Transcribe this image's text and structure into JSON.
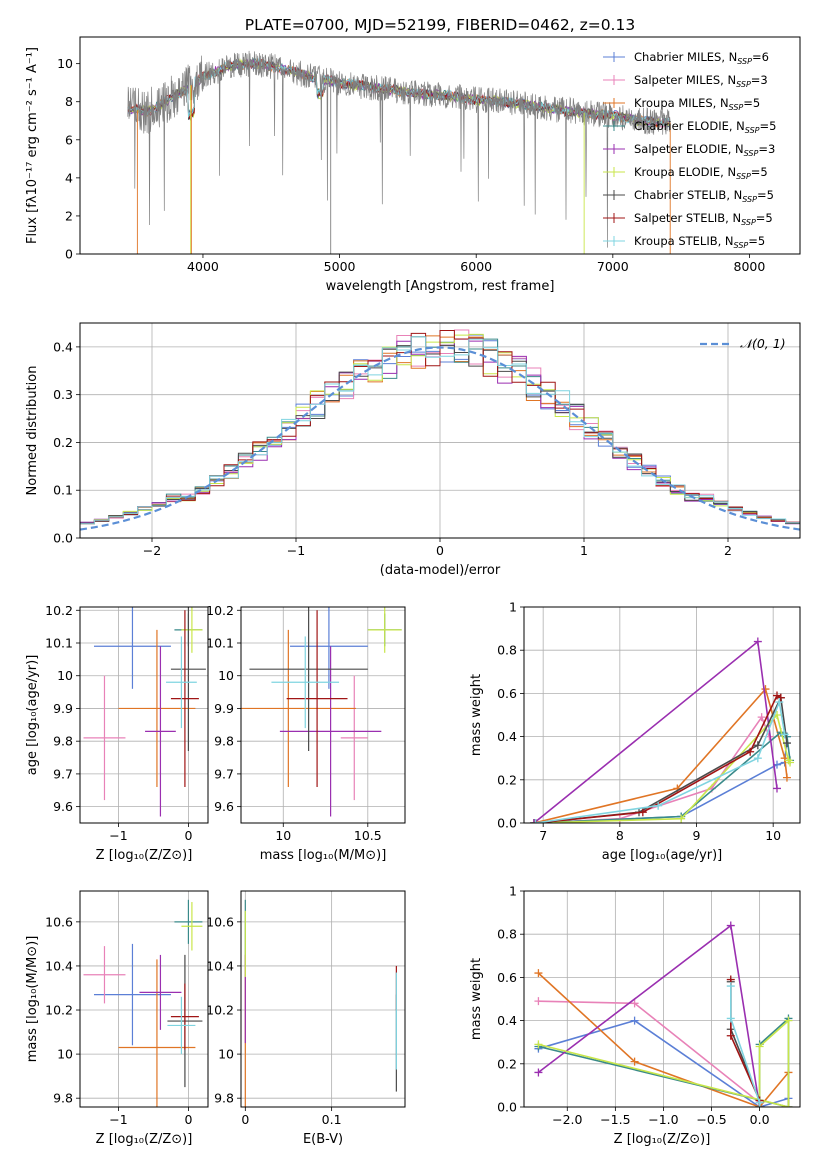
{
  "title": "PLATE=0700, MJD=52199, FIBERID=0462, z=0.13",
  "colors": {
    "c1": "#5b7fd6",
    "c2": "#e882b8",
    "c3": "#e07525",
    "c4": "#3a8a8a",
    "c5": "#9a2fb0",
    "c6": "#c8e64a",
    "c7": "#4a4a4a",
    "c8": "#a01515",
    "c9": "#7fd4e0",
    "grey": "#808080",
    "normal": "#5b8fd6"
  },
  "legend": [
    {
      "text": "Chabrier MILES, N",
      "sub": "SSP",
      "n": "=6",
      "color": "c1"
    },
    {
      "text": "Salpeter MILES, N",
      "sub": "SSP",
      "n": "=3",
      "color": "c2"
    },
    {
      "text": "Kroupa MILES, N",
      "sub": "SSP",
      "n": "=5",
      "color": "c3"
    },
    {
      "text": "Chabrier ELODIE, N",
      "sub": "SSP",
      "n": "=5",
      "color": "c4"
    },
    {
      "text": "Salpeter ELODIE, N",
      "sub": "SSP",
      "n": "=3",
      "color": "c5"
    },
    {
      "text": "Kroupa ELODIE, N",
      "sub": "SSP",
      "n": "=5",
      "color": "c6"
    },
    {
      "text": "Chabrier STELIB, N",
      "sub": "SSP",
      "n": "=5",
      "color": "c7"
    },
    {
      "text": "Salpeter STELIB, N",
      "sub": "SSP",
      "n": "=5",
      "color": "c8"
    },
    {
      "text": "Kroupa STELIB, N",
      "sub": "SSP",
      "n": "=5",
      "color": "c9"
    }
  ],
  "chart_data": [
    {
      "panel": "spectrum",
      "type": "line",
      "xlabel": "wavelength [Angstrom, rest frame]",
      "ylabel": "Flux [fλ10⁻¹⁷ erg cm⁻² s⁻¹ A⁻¹]",
      "xlim": [
        3100,
        8370
      ],
      "ylim": [
        0,
        11.4
      ],
      "xticks": [
        4000,
        5000,
        6000,
        7000,
        8000
      ],
      "yticks": [
        0,
        2,
        4,
        6,
        8,
        10
      ],
      "continuum_x": [
        3450,
        3600,
        3800,
        4000,
        4200,
        4400,
        4600,
        4800,
        5000,
        5200,
        5400,
        5600,
        5800,
        6000,
        6200,
        6400,
        6600,
        6800,
        7000,
        7200,
        7400
      ],
      "continuum_y": [
        7.6,
        7.5,
        8.3,
        9.3,
        9.9,
        10.0,
        9.7,
        9.3,
        9.0,
        8.8,
        8.6,
        8.4,
        8.3,
        8.1,
        8.0,
        7.8,
        7.6,
        7.4,
        7.3,
        7.0,
        6.9
      ]
    },
    {
      "panel": "residual_distribution",
      "type": "line",
      "xlabel": "(data-model)/error",
      "ylabel": "Normed distribution",
      "xlim": [
        -2.5,
        2.5
      ],
      "ylim": [
        0,
        0.45
      ],
      "xticks": [
        -2,
        -1,
        0,
        1,
        2
      ],
      "yticks": [
        0.0,
        0.1,
        0.2,
        0.3,
        0.4
      ],
      "normal_label": "𝒩(0, 1)",
      "bin_width": 0.1
    },
    {
      "panel": "age_vs_Z",
      "type": "scatter",
      "xlabel": "Z [log₁₀(Z/Z⊙)]",
      "ylabel": "age  [log₁₀(age/yr)]",
      "xlim": [
        -1.55,
        0.28
      ],
      "ylim": [
        9.55,
        10.21
      ],
      "xticks": [
        -1,
        0
      ],
      "yticks": [
        9.6,
        9.7,
        9.8,
        9.9,
        10.0,
        10.1,
        10.2
      ],
      "points": [
        {
          "c": "c1",
          "x": -0.8,
          "xe": 0.55,
          "y": 10.09,
          "ye": 0.13
        },
        {
          "c": "c2",
          "x": -1.2,
          "xe": 0.3,
          "y": 9.81,
          "ye": 0.19
        },
        {
          "c": "c3",
          "x": -0.45,
          "xe": 0.55,
          "y": 9.9,
          "ye": 0.24
        },
        {
          "c": "c4",
          "x": 0.0,
          "xe": 0.2,
          "y": 10.14,
          "ye": 0.05
        },
        {
          "c": "c5",
          "x": -0.4,
          "xe": 0.22,
          "y": 9.83,
          "ye": 0.26
        },
        {
          "c": "c6",
          "x": 0.05,
          "xe": 0.15,
          "y": 10.14,
          "ye": 0.07
        },
        {
          "c": "c7",
          "x": 0.0,
          "xe": 0.25,
          "y": 10.02,
          "ye": 0.25
        },
        {
          "c": "c8",
          "x": -0.05,
          "xe": 0.2,
          "y": 9.93,
          "ye": 0.27
        },
        {
          "c": "c9",
          "x": -0.1,
          "xe": 0.22,
          "y": 9.98,
          "ye": 0.14
        }
      ]
    },
    {
      "panel": "age_vs_mass",
      "type": "scatter",
      "xlabel": "mass [log₁₀(M/M⊙)]",
      "ylabel": "",
      "xlim": [
        9.75,
        10.72
      ],
      "ylim": [
        9.55,
        10.21
      ],
      "xticks": [
        10.0,
        10.5
      ],
      "yticks": [
        9.6,
        9.7,
        9.8,
        9.9,
        10.0,
        10.1,
        10.2
      ],
      "points": [
        {
          "c": "c1",
          "x": 10.27,
          "xe": 0.23,
          "y": 10.09,
          "ye": 0.13
        },
        {
          "c": "c2",
          "x": 10.42,
          "xe": 0.08,
          "y": 9.81,
          "ye": 0.19
        },
        {
          "c": "c3",
          "x": 10.03,
          "xe": 0.4,
          "y": 9.9,
          "ye": 0.24
        },
        {
          "c": "c4",
          "x": 10.6,
          "xe": 0.1,
          "y": 10.14,
          "ye": 0.05
        },
        {
          "c": "c5",
          "x": 10.28,
          "xe": 0.3,
          "y": 9.83,
          "ye": 0.26
        },
        {
          "c": "c6",
          "x": 10.6,
          "xe": 0.1,
          "y": 10.14,
          "ye": 0.07
        },
        {
          "c": "c7",
          "x": 10.15,
          "xe": 0.35,
          "y": 10.02,
          "ye": 0.25
        },
        {
          "c": "c8",
          "x": 10.2,
          "xe": 0.18,
          "y": 9.93,
          "ye": 0.27
        },
        {
          "c": "c9",
          "x": 10.13,
          "xe": 0.2,
          "y": 9.98,
          "ye": 0.14
        }
      ]
    },
    {
      "panel": "weight_vs_age",
      "type": "line",
      "xlabel": "age  [log₁₀(age/yr)]",
      "ylabel": "mass weight",
      "xlim": [
        6.75,
        10.35
      ],
      "ylim": [
        0,
        1
      ],
      "xticks": [
        7,
        8,
        9,
        10
      ],
      "yticks": [
        0.0,
        0.2,
        0.4,
        0.6,
        0.8,
        1.0
      ],
      "series": [
        {
          "c": "c1",
          "x": [
            6.88,
            8.8,
            10.05,
            10.15,
            10.18
          ],
          "y": [
            0.0,
            0.03,
            0.27,
            0.28,
            0.4
          ]
        },
        {
          "c": "c2",
          "x": [
            6.9,
            8.0,
            9.2,
            9.85,
            9.95
          ],
          "y": [
            0.0,
            0.02,
            0.16,
            0.49,
            0.4
          ]
        },
        {
          "c": "c3",
          "x": [
            6.88,
            8.75,
            9.9,
            10.15,
            10.18
          ],
          "y": [
            0.0,
            0.16,
            0.62,
            0.3,
            0.21
          ]
        },
        {
          "c": "c4",
          "x": [
            6.88,
            8.8,
            10.1,
            10.18,
            10.22
          ],
          "y": [
            0.0,
            0.03,
            0.42,
            0.4,
            0.29
          ]
        },
        {
          "c": "c5",
          "x": [
            6.88,
            9.8,
            10.05
          ],
          "y": [
            0.0,
            0.84,
            0.16
          ]
        },
        {
          "c": "c6",
          "x": [
            6.9,
            8.8,
            10.05,
            10.2,
            10.22
          ],
          "y": [
            0.0,
            0.02,
            0.5,
            0.29,
            0.28
          ]
        },
        {
          "c": "c7",
          "x": [
            6.9,
            8.25,
            9.8,
            10.1,
            10.18
          ],
          "y": [
            0.0,
            0.05,
            0.36,
            0.58,
            0.37
          ]
        },
        {
          "c": "c8",
          "x": [
            6.9,
            8.3,
            9.7,
            10.05,
            10.1
          ],
          "y": [
            0.0,
            0.05,
            0.33,
            0.59,
            0.58
          ]
        },
        {
          "c": "c9",
          "x": [
            6.9,
            8.5,
            9.8,
            10.08,
            10.15
          ],
          "y": [
            0.0,
            0.08,
            0.3,
            0.56,
            0.41
          ]
        }
      ]
    },
    {
      "panel": "mass_vs_Z",
      "type": "scatter",
      "xlabel": "Z [log₁₀(Z/Z⊙)]",
      "ylabel": "mass [log₁₀(M/M⊙)]",
      "xlim": [
        -1.55,
        0.28
      ],
      "ylim": [
        9.76,
        10.74
      ],
      "xticks": [
        -1,
        0
      ],
      "yticks": [
        9.8,
        10.0,
        10.2,
        10.4,
        10.6
      ],
      "points": [
        {
          "c": "c1",
          "x": -0.8,
          "xe": 0.55,
          "y": 10.27,
          "ye": 0.23
        },
        {
          "c": "c2",
          "x": -1.2,
          "xe": 0.3,
          "y": 10.36,
          "ye": 0.13
        },
        {
          "c": "c3",
          "x": -0.45,
          "xe": 0.55,
          "y": 10.03,
          "ye": 0.4
        },
        {
          "c": "c4",
          "x": 0.0,
          "xe": 0.2,
          "y": 10.6,
          "ye": 0.1
        },
        {
          "c": "c5",
          "x": -0.4,
          "xe": 0.3,
          "y": 10.28,
          "ye": 0.17
        },
        {
          "c": "c6",
          "x": 0.05,
          "xe": 0.15,
          "y": 10.58,
          "ye": 0.11
        },
        {
          "c": "c7",
          "x": -0.05,
          "xe": 0.25,
          "y": 10.15,
          "ye": 0.3
        },
        {
          "c": "c8",
          "x": -0.05,
          "xe": 0.2,
          "y": 10.17,
          "ye": 0.15
        },
        {
          "c": "c9",
          "x": -0.1,
          "xe": 0.2,
          "y": 10.13,
          "ye": 0.13
        }
      ]
    },
    {
      "panel": "mass_vs_EBV",
      "type": "scatter",
      "xlabel": "E(B-V)",
      "ylabel": "",
      "xlim": [
        -0.005,
        0.185
      ],
      "ylim": [
        9.76,
        10.74
      ],
      "xticks": [
        0.0,
        0.1
      ],
      "yticks": [
        9.8,
        10.0,
        10.2,
        10.4,
        10.6
      ],
      "points": [
        {
          "c": "c3",
          "x": 0.0,
          "xe": 0.0,
          "y": 10.1,
          "ye": 0.35
        },
        {
          "c": "c4",
          "x": 0.0,
          "xe": 0.0,
          "y": 10.55,
          "ye": 0.15
        },
        {
          "c": "c5",
          "x": 0.0,
          "xe": 0.0,
          "y": 10.25,
          "ye": 0.2
        },
        {
          "c": "c6",
          "x": 0.0,
          "xe": 0.0,
          "y": 10.5,
          "ye": 0.15
        },
        {
          "c": "c7",
          "x": 0.175,
          "xe": 0.0,
          "y": 10.05,
          "ye": 0.22
        },
        {
          "c": "c8",
          "x": 0.175,
          "xe": 0.0,
          "y": 10.3,
          "ye": 0.1
        },
        {
          "c": "c9",
          "x": 0.175,
          "xe": 0.0,
          "y": 10.15,
          "ye": 0.22
        }
      ]
    },
    {
      "panel": "weight_vs_Z",
      "type": "line",
      "xlabel": "Z [log₁₀(Z/Z⊙)]",
      "ylabel": "mass weight",
      "xlim": [
        -2.45,
        0.42
      ],
      "ylim": [
        0,
        1
      ],
      "xticks": [
        -2.0,
        -1.5,
        -1.0,
        -0.5,
        0.0
      ],
      "xtick_labels": [
        "−2.0",
        "−1.5",
        "−1.0",
        "−0.5",
        "0.0"
      ],
      "yticks": [
        0.0,
        0.2,
        0.4,
        0.6,
        0.8,
        1.0
      ],
      "series": [
        {
          "c": "c1",
          "x": [
            -2.3,
            -1.3,
            0.0,
            0.3,
            0.3
          ],
          "y": [
            0.27,
            0.4,
            0.0,
            0.04,
            0.0
          ]
        },
        {
          "c": "c2",
          "x": [
            -2.3,
            -1.3,
            0.0,
            0.0
          ],
          "y": [
            0.49,
            0.48,
            0.02,
            0.0
          ]
        },
        {
          "c": "c3",
          "x": [
            -2.3,
            -1.3,
            0.0,
            0.3,
            0.3
          ],
          "y": [
            0.62,
            0.21,
            0.0,
            0.16,
            0.0
          ]
        },
        {
          "c": "c4",
          "x": [
            -2.3,
            0.3,
            0.3,
            0.0,
            0.0
          ],
          "y": [
            0.28,
            0.0,
            0.41,
            0.29,
            0.0
          ]
        },
        {
          "c": "c5",
          "x": [
            -2.3,
            -0.3,
            0.0
          ],
          "y": [
            0.16,
            0.84,
            0.0
          ]
        },
        {
          "c": "c6",
          "x": [
            -2.3,
            0.3,
            0.3,
            0.0,
            0.0
          ],
          "y": [
            0.29,
            0.0,
            0.4,
            0.28,
            0.0
          ]
        },
        {
          "c": "c7",
          "x": [
            -0.3,
            -0.3,
            0.0,
            0.0
          ],
          "y": [
            0.58,
            0.36,
            0.03,
            0.0
          ]
        },
        {
          "c": "c8",
          "x": [
            -0.3,
            -0.3,
            0.0,
            0.0
          ],
          "y": [
            0.59,
            0.33,
            0.03,
            0.0
          ]
        },
        {
          "c": "c9",
          "x": [
            -0.3,
            -0.3,
            0.0,
            0.0
          ],
          "y": [
            0.56,
            0.41,
            0.02,
            0.0
          ]
        }
      ]
    }
  ]
}
